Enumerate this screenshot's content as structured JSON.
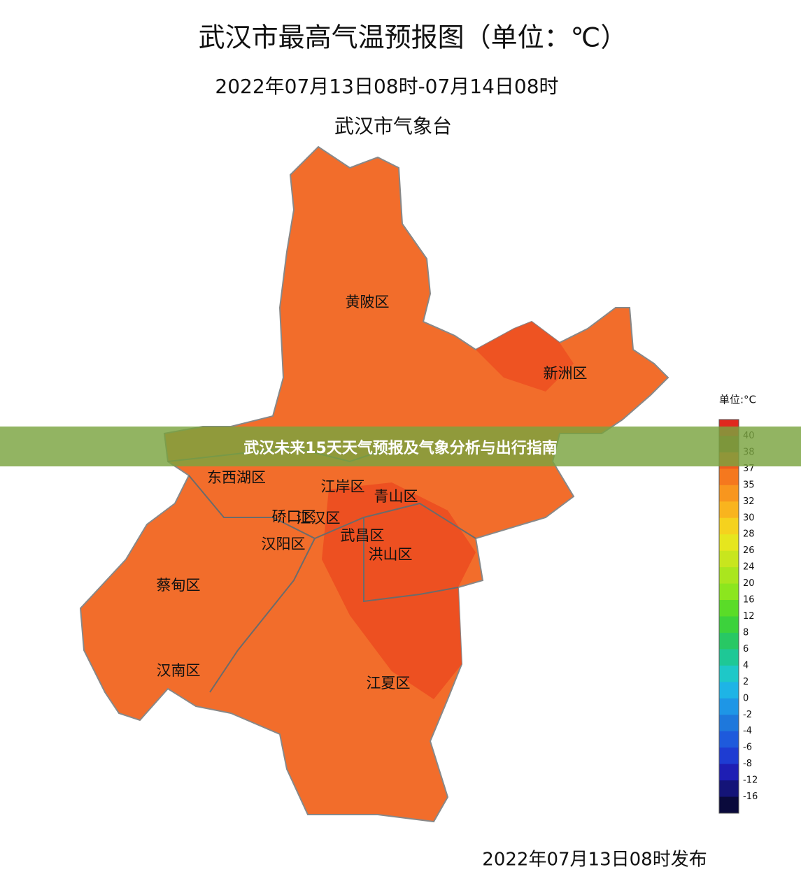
{
  "title": "武汉市最高气温预报图（单位：℃）",
  "period": "2022年07月13日08时-07月14日08时",
  "source": "武汉市气象台",
  "headline": "武汉未来15天天气预报及气象分析与出行指南",
  "release": "2022年07月13日08时发布",
  "districts": [
    "黄陂区",
    "新洲区",
    "东西湖区",
    "江岸区",
    "青山区",
    "硚口区",
    "江汉区",
    "武昌区",
    "汉阳区",
    "洪山区",
    "蔡甸区",
    "汉南区",
    "江夏区"
  ],
  "legend": {
    "unit": "单位:°C",
    "labels": [
      40,
      38,
      37,
      35,
      32,
      30,
      28,
      26,
      24,
      20,
      16,
      12,
      8,
      6,
      4,
      2,
      0,
      -2,
      -4,
      -6,
      -8,
      -12,
      -16
    ],
    "colors": [
      "#e0281e",
      "#8b5a2b",
      "#f05a1e",
      "#f5781e",
      "#f8961e",
      "#f9b41e",
      "#f5d21e",
      "#e6e61e",
      "#c8e61e",
      "#aae61e",
      "#8ce61e",
      "#5adc28",
      "#3cd23c",
      "#28c864",
      "#1ec896",
      "#1ec8c8",
      "#1eb4e6",
      "#1e96e6",
      "#1e78dc",
      "#1e5adc",
      "#1e3cd2",
      "#1e1eb4",
      "#141478",
      "#0a0a3c"
    ]
  }
}
